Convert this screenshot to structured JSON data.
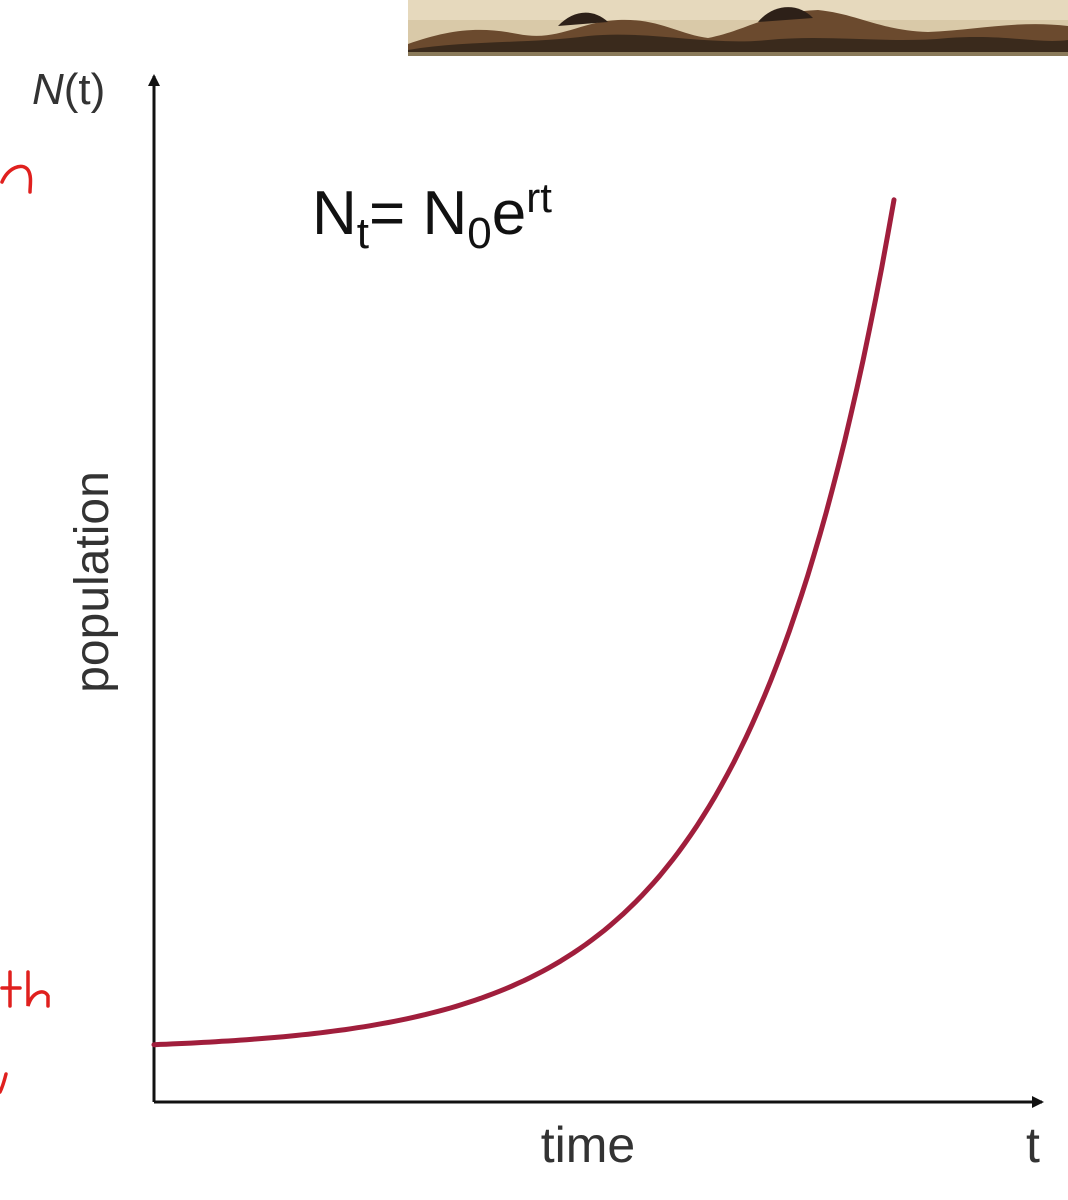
{
  "chart_data": {
    "type": "line",
    "title": "",
    "formula": {
      "base": "N",
      "base_sub": "t",
      "equals": "= ",
      "rhs": "N",
      "rhs_sub": "0",
      "exp_base": "e",
      "exp": "rt"
    },
    "y_axis_symbol": {
      "name": "N",
      "paren": "(t)"
    },
    "x_axis_symbol": "t",
    "xlabel": "time",
    "ylabel": "population",
    "grid": false,
    "series": [
      {
        "color": "#a01e3c",
        "x": [
          0,
          0.5,
          1,
          1.5,
          2,
          2.5,
          3,
          3.5,
          4,
          4.5,
          5
        ],
        "y": [
          1,
          1.65,
          2.72,
          4.48,
          7.39,
          12.18,
          20.09,
          33.12,
          54.6,
          90.02,
          148.41
        ]
      }
    ],
    "xlim": [
      0,
      6
    ],
    "ylim": [
      -9,
      170
    ]
  },
  "colors": {
    "axis": "#111111",
    "curve": "#a01e3c",
    "annotation": "#e0201e"
  },
  "decor": {
    "painting": "landscape-painting-fragment",
    "margin_notes": "red-handwriting-fragments"
  }
}
